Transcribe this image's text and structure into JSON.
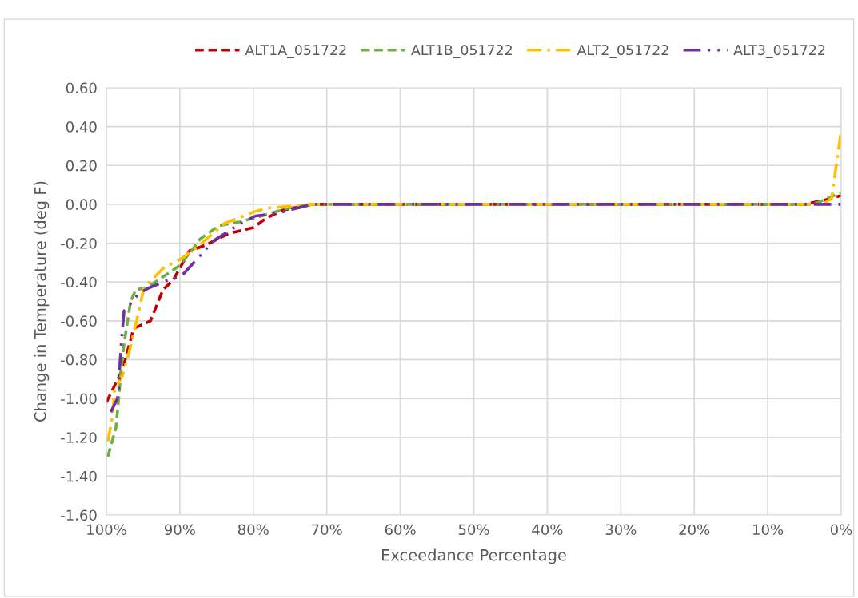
{
  "chart_data": {
    "type": "line",
    "xlabel": "Exceedance Percentage",
    "ylabel": "Change in Temperature (deg F)",
    "xlim": [
      100,
      0
    ],
    "xticks": [
      {
        "value": 100,
        "label": "100%"
      },
      {
        "value": 90,
        "label": "90%"
      },
      {
        "value": 80,
        "label": "80%"
      },
      {
        "value": 70,
        "label": "70%"
      },
      {
        "value": 60,
        "label": "60%"
      },
      {
        "value": 50,
        "label": "50%"
      },
      {
        "value": 40,
        "label": "40%"
      },
      {
        "value": 30,
        "label": "30%"
      },
      {
        "value": 20,
        "label": "20%"
      },
      {
        "value": 10,
        "label": "10%"
      },
      {
        "value": 0,
        "label": "0%"
      }
    ],
    "ylim": [
      -1.6,
      0.6
    ],
    "yticks": [
      {
        "value": 0.6,
        "label": "0.60"
      },
      {
        "value": 0.4,
        "label": "0.40"
      },
      {
        "value": 0.2,
        "label": "0.20"
      },
      {
        "value": 0,
        "label": "0.00"
      },
      {
        "value": -0.2,
        "label": "-0.20"
      },
      {
        "value": -0.4,
        "label": "-0.40"
      },
      {
        "value": -0.6,
        "label": "-0.60"
      },
      {
        "value": -0.8,
        "label": "-0.80"
      },
      {
        "value": -1.0,
        "label": "-1.00"
      },
      {
        "value": -1.2,
        "label": "-1.20"
      },
      {
        "value": -1.4,
        "label": "-1.40"
      },
      {
        "value": -1.6,
        "label": "-1.60"
      }
    ],
    "grid": true,
    "legend": "top",
    "marker": "none",
    "series": [
      {
        "name": "ALT1A_051722",
        "color": "#c00000",
        "line_style": "dashed",
        "x": [
          100,
          97.8,
          96.3,
          94.0,
          92.3,
          90.9,
          88.7,
          86.5,
          83.3,
          80.0,
          78.2,
          76.0,
          72,
          5,
          2.4,
          0
        ],
        "values": [
          -1.02,
          -0.85,
          -0.64,
          -0.6,
          -0.44,
          -0.39,
          -0.24,
          -0.21,
          -0.15,
          -0.12,
          -0.07,
          -0.03,
          0,
          0,
          0.02,
          0.045
        ]
      },
      {
        "name": "ALT1B_051722",
        "color": "#70ad47",
        "line_style": "dashed",
        "x": [
          99.8,
          98.7,
          98.3,
          98.0,
          97.6,
          96.7,
          96.0,
          94.5,
          90.2,
          88.4,
          87.3,
          84.7,
          81.8,
          78.9,
          75.3,
          72,
          3.8,
          0
        ],
        "values": [
          -1.3,
          -1.15,
          -0.99,
          -0.85,
          -0.72,
          -0.5,
          -0.44,
          -0.43,
          -0.32,
          -0.24,
          -0.18,
          -0.11,
          -0.09,
          -0.06,
          -0.02,
          0,
          0,
          0.06
        ]
      },
      {
        "name": "ALT2_051722",
        "color": "#ffc000",
        "line_style": "dashdot",
        "x": [
          99.8,
          99.2,
          98.9,
          97.8,
          96.9,
          96.2,
          95.4,
          94.9,
          92.3,
          89.8,
          87.3,
          84.0,
          80.0,
          78.2,
          72,
          2.5,
          1.3,
          0
        ],
        "values": [
          -1.22,
          -1.1,
          -0.96,
          -0.88,
          -0.76,
          -0.65,
          -0.52,
          -0.43,
          -0.33,
          -0.28,
          -0.21,
          -0.1,
          -0.04,
          -0.02,
          0,
          0,
          0.03,
          0.38
        ]
      },
      {
        "name": "ALT3_051722",
        "color": "#7030a0",
        "line_style": "dashdotdot",
        "x": [
          99.4,
          98.5,
          98.3,
          98.2,
          98.0,
          97.6,
          95.6,
          94.2,
          91.6,
          89.8,
          87.6,
          85.5,
          81.8,
          79.7,
          77.5,
          76.1,
          72,
          0
        ],
        "values": [
          -1.07,
          -1.0,
          -0.95,
          -0.85,
          -0.73,
          -0.55,
          -0.46,
          -0.43,
          -0.39,
          -0.37,
          -0.28,
          -0.19,
          -0.1,
          -0.06,
          -0.05,
          -0.04,
          0,
          0
        ]
      }
    ]
  }
}
